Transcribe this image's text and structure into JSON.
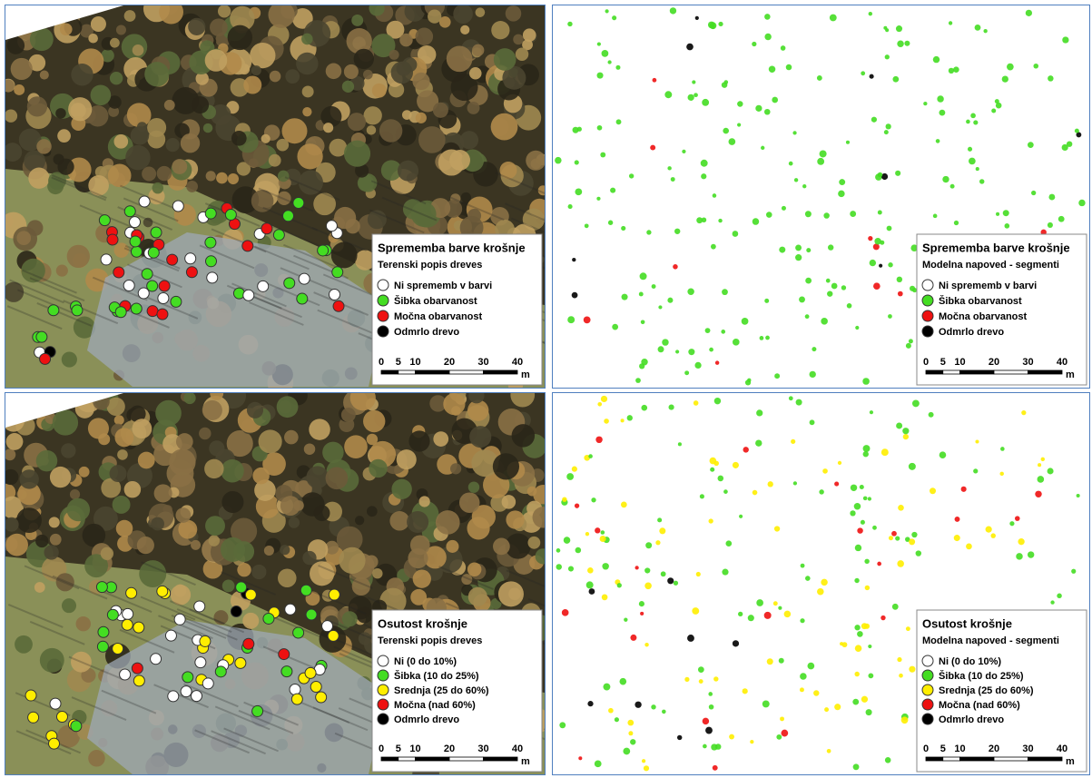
{
  "panels": [
    {
      "kind": "field",
      "legend": {
        "title": "Sprememba barve krošnje",
        "subtitle": "Terenski popis dreves",
        "items": [
          {
            "label": "Ni sprememb v barvi",
            "color": "#ffffff"
          },
          {
            "label": "Šibka obarvanost",
            "color": "#44dd22"
          },
          {
            "label": "Močna obarvanost",
            "color": "#ee1111"
          },
          {
            "label": "Odmrlo drevo",
            "color": "#000000"
          }
        ]
      },
      "scale": {
        "ticks": [
          0,
          5,
          10,
          20,
          30,
          40
        ],
        "unit": "m"
      }
    },
    {
      "kind": "model",
      "legend": {
        "title": "Sprememba barve krošnje",
        "subtitle": "Modelna napoved - segmenti",
        "items": [
          {
            "label": "Ni sprememb v barvi",
            "color": "#ffffff"
          },
          {
            "label": "Šibka obarvanost",
            "color": "#44dd22"
          },
          {
            "label": "Močna obarvanost",
            "color": "#ee1111"
          },
          {
            "label": "Odmrlo drevo",
            "color": "#000000"
          }
        ]
      },
      "scale": {
        "ticks": [
          0,
          5,
          10,
          20,
          30,
          40
        ],
        "unit": "m"
      }
    },
    {
      "kind": "field",
      "legend": {
        "title": "Osutost krošnje",
        "subtitle": "Terenski popis dreves",
        "items": [
          {
            "label": "Ni (0 do 10%)",
            "color": "#ffffff"
          },
          {
            "label": "Šibka (10 do 25%)",
            "color": "#44dd22"
          },
          {
            "label": "Srednja (25 do 60%)",
            "color": "#ffee00"
          },
          {
            "label": "Močna (nad 60%)",
            "color": "#ee1111"
          },
          {
            "label": "Odmrlo drevo",
            "color": "#000000"
          }
        ]
      },
      "scale": {
        "ticks": [
          0,
          5,
          10,
          20,
          30,
          40
        ],
        "unit": "m"
      }
    },
    {
      "kind": "model",
      "legend": {
        "title": "Osutost krošnje",
        "subtitle": "Modelna napoved - segmenti",
        "items": [
          {
            "label": "Ni (0 do 10%)",
            "color": "#ffffff"
          },
          {
            "label": "Šibka (10 do 25%)",
            "color": "#44dd22"
          },
          {
            "label": "Srednja (25 do 60%)",
            "color": "#ffee00"
          },
          {
            "label": "Močna (nad 60%)",
            "color": "#ee1111"
          },
          {
            "label": "Odmrlo drevo",
            "color": "#000000"
          }
        ]
      },
      "scale": {
        "ticks": [
          0,
          5,
          10,
          20,
          30,
          40
        ],
        "unit": "m"
      }
    }
  ]
}
